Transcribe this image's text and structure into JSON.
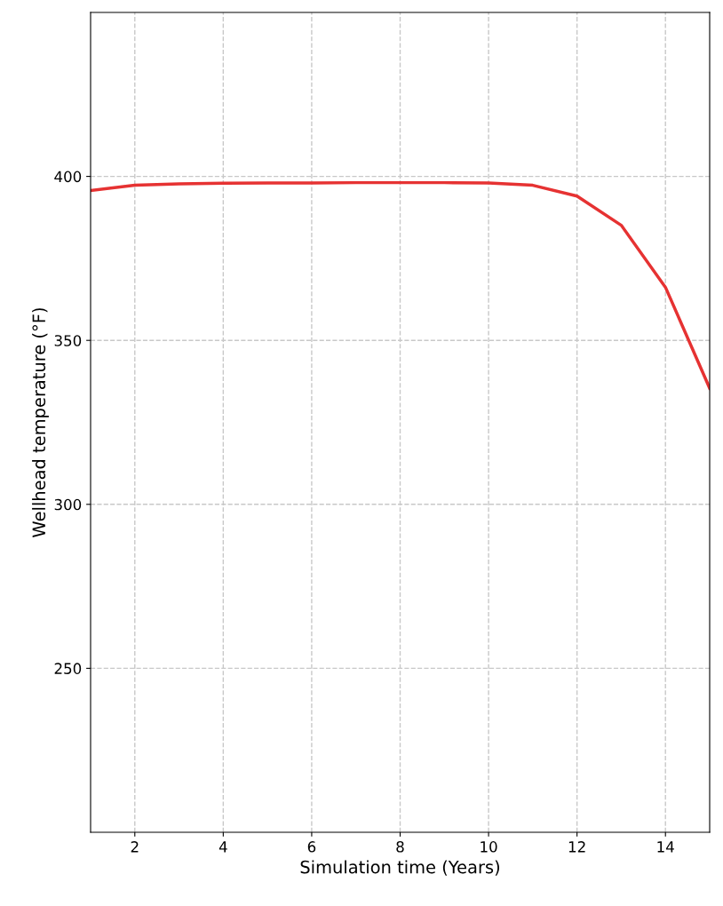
{
  "chart_data": {
    "type": "line",
    "xlabel": "Simulation time (Years)",
    "ylabel": "Wellhead temperature (°F)",
    "x": [
      1,
      2,
      3,
      4,
      5,
      6,
      7,
      8,
      9,
      10,
      11,
      12,
      13,
      14,
      15
    ],
    "series": [
      {
        "color": "#e63232",
        "values": [
          395.7,
          397.3,
          397.7,
          397.9,
          398,
          398,
          398.1,
          398.1,
          398.1,
          398,
          397.3,
          394,
          385.1,
          366.2,
          335.4
        ]
      }
    ],
    "xlim": [
      1,
      15
    ],
    "xticks": [
      2,
      4,
      6,
      8,
      10,
      12,
      14
    ],
    "ylim": [
      200,
      450
    ],
    "yticks": [
      250,
      300,
      350,
      400
    ],
    "grid": true,
    "line_style": "solid",
    "marker": "none"
  }
}
